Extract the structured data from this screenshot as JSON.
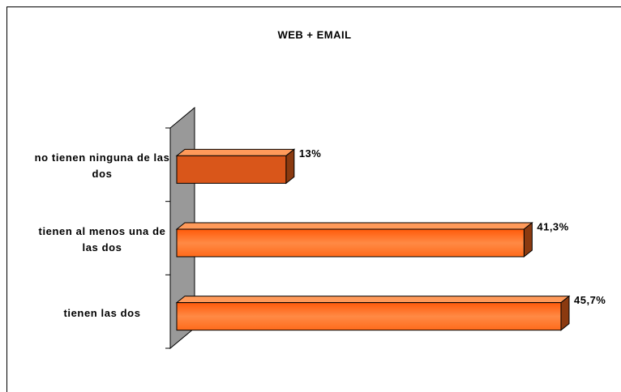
{
  "chart_data": {
    "type": "bar",
    "orientation": "horizontal",
    "title": "WEB + EMAIL",
    "categories": [
      "no tienen ninguna de las dos",
      "tienen al menos una de las dos",
      "tienen las dos"
    ],
    "values": [
      13,
      41.3,
      45.7
    ],
    "value_labels": [
      "13%",
      "41,3%",
      "45,7%"
    ],
    "color": "#ff6a1a"
  }
}
